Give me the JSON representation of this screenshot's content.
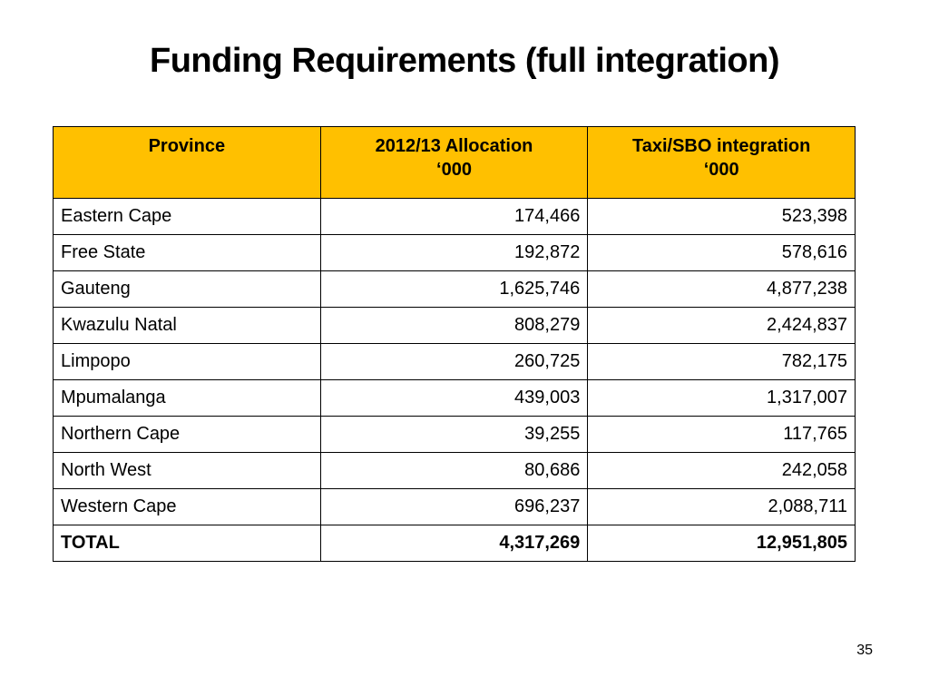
{
  "slide": {
    "title": "Funding Requirements (full integration)",
    "page_number": "35",
    "header_color": "#FFC000"
  },
  "table": {
    "headers": {
      "province": "Province",
      "allocation_line1": "2012/13 Allocation",
      "allocation_line2": "‘000",
      "integration_line1": "Taxi/SBO integration",
      "integration_line2": "‘000"
    },
    "rows": [
      {
        "province": "Eastern Cape",
        "allocation": "174,466",
        "integration": "523,398"
      },
      {
        "province": "Free State",
        "allocation": "192,872",
        "integration": "578,616"
      },
      {
        "province": "Gauteng",
        "allocation": "1,625,746",
        "integration": "4,877,238"
      },
      {
        "province": "Kwazulu Natal",
        "allocation": "808,279",
        "integration": "2,424,837"
      },
      {
        "province": "Limpopo",
        "allocation": "260,725",
        "integration": "782,175"
      },
      {
        "province": "Mpumalanga",
        "allocation": "439,003",
        "integration": "1,317,007"
      },
      {
        "province": "Northern Cape",
        "allocation": "39,255",
        "integration": "117,765"
      },
      {
        "province": "North West",
        "allocation": "80,686",
        "integration": "242,058"
      },
      {
        "province": "Western Cape",
        "allocation": "696,237",
        "integration": "2,088,711"
      }
    ],
    "total": {
      "label": "TOTAL",
      "allocation": "4,317,269",
      "integration": "12,951,805"
    }
  }
}
